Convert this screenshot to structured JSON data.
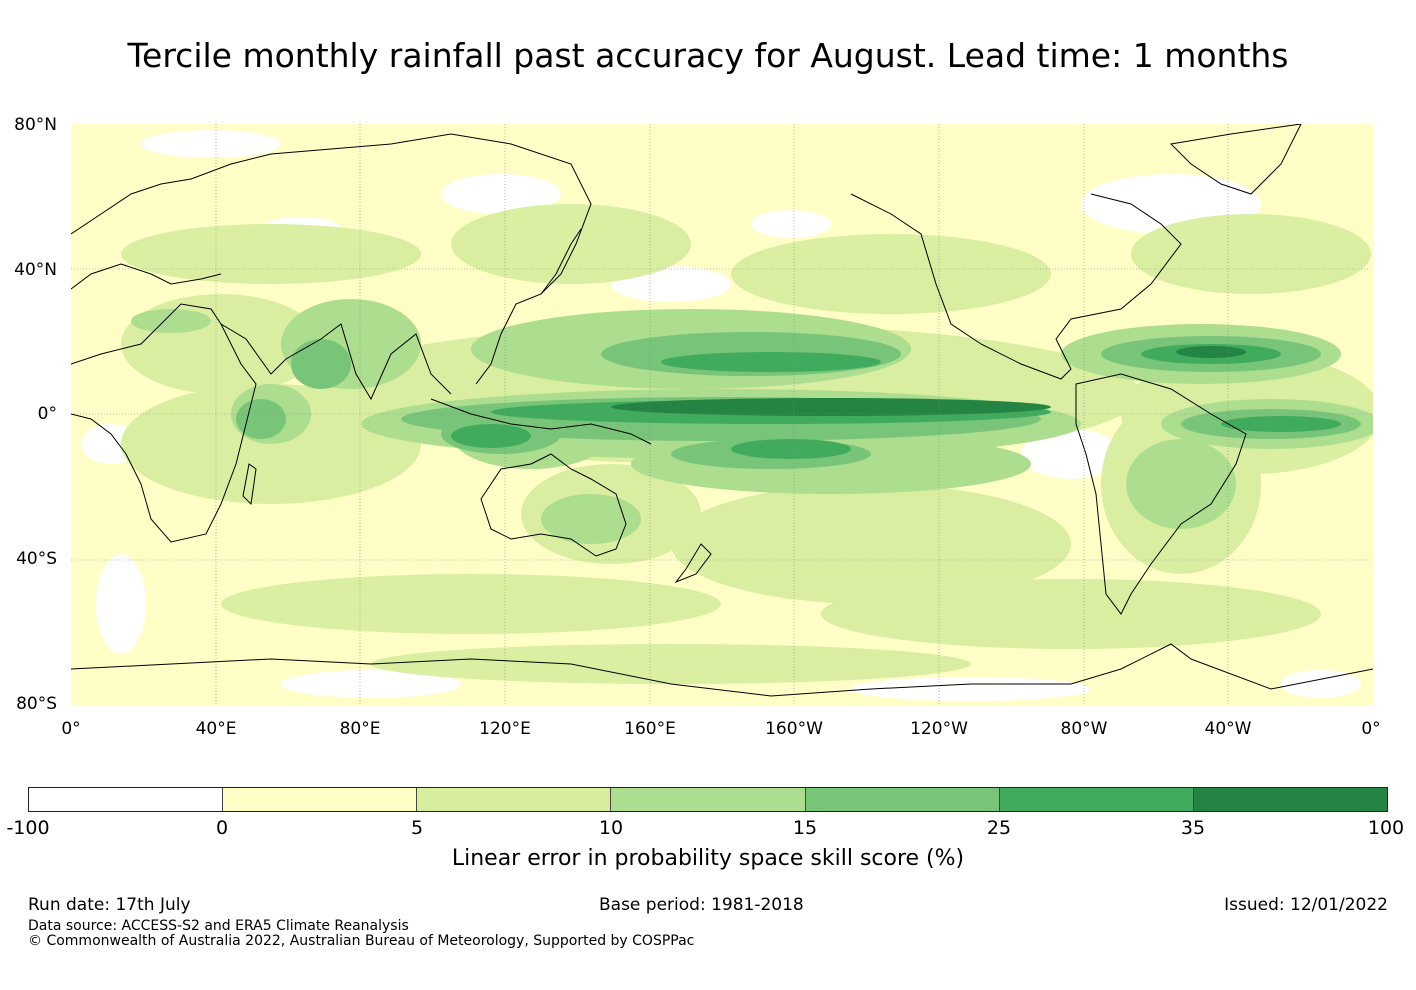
{
  "title": "Tercile monthly rainfall past accuracy for August. Lead time: 1 months",
  "map": {
    "lat_ticks": [
      "80°N",
      "40°N",
      "0°",
      "40°S",
      "80°S"
    ],
    "lon_ticks": [
      "0°",
      "40°E",
      "80°E",
      "120°E",
      "160°E",
      "160°W",
      "120°W",
      "80°W",
      "40°W",
      "0°"
    ],
    "background_color": "#fefec6",
    "land_outline_color": "#000000"
  },
  "colorbar": {
    "ticks": [
      "-100",
      "0",
      "5",
      "10",
      "15",
      "25",
      "35",
      "100"
    ],
    "colors": [
      "#ffffff",
      "#fefec6",
      "#d8ee9f",
      "#addd8e",
      "#78c579",
      "#41ab5d",
      "#238443"
    ],
    "label": "Linear error in probability space skill score (%)"
  },
  "footer": {
    "run_date": "Run date: 17th July",
    "base_period": "Base period: 1981-2018",
    "issued": "Issued: 12/01/2022",
    "data_source": "Data source: ACCESS-S2 and ERA5 Climate Reanalysis",
    "copyright": "© Commonwealth of Australia 2022, Australian Bureau of Meteorology, Supported by COSPPac"
  }
}
